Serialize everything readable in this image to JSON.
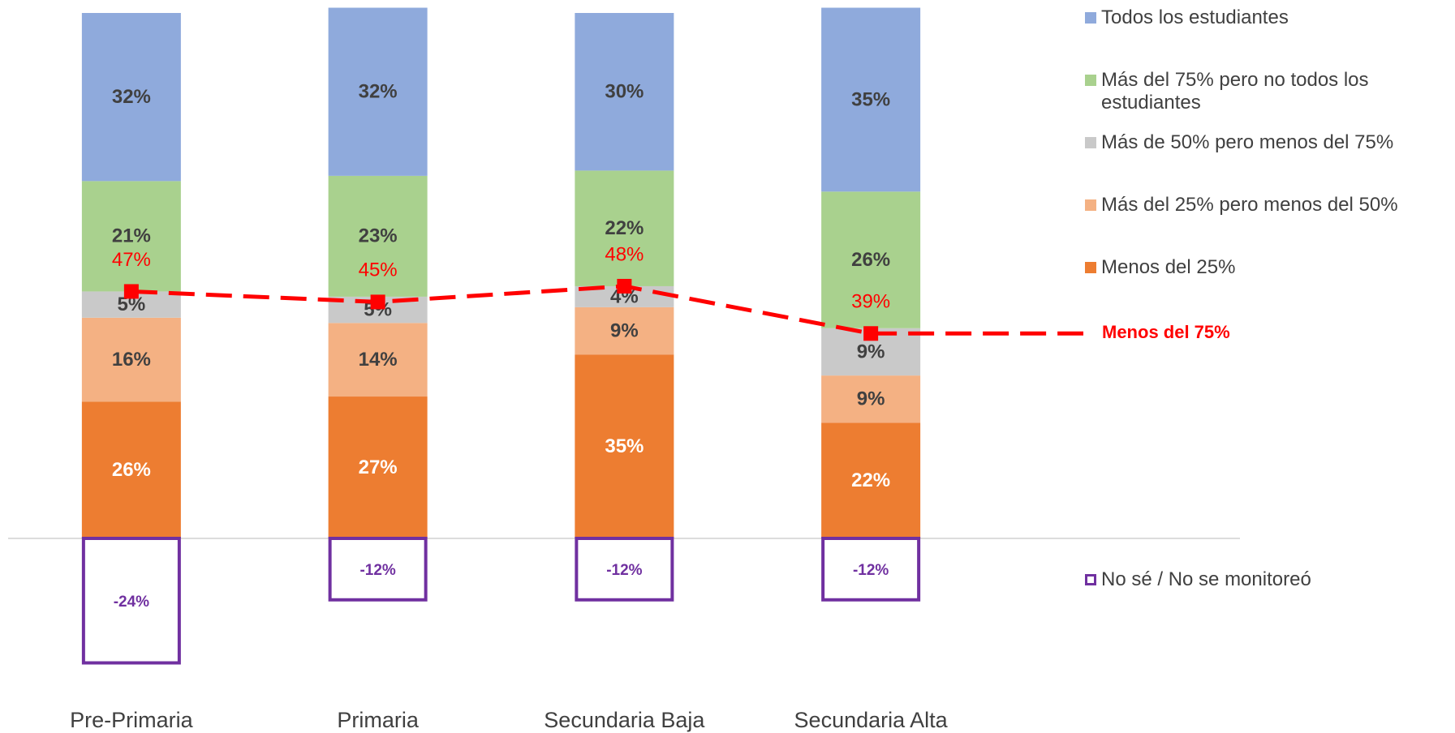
{
  "chart_data": {
    "type": "bar",
    "stacked": true,
    "categories": [
      "Pre-Primaria",
      "Primaria",
      "Secundaria Baja",
      "Secundaria Alta"
    ],
    "ylim": [
      -30,
      100
    ],
    "series": [
      {
        "name": "Menos del 25%",
        "color": "#ed7d31",
        "label_color": "#ffffff",
        "values": [
          26,
          27,
          35,
          22
        ],
        "value_labels": [
          "26%",
          "27%",
          "35%",
          "22%"
        ]
      },
      {
        "name": "Más del 25% pero menos del 50%",
        "color": "#f4b183",
        "label_color": "#404040",
        "values": [
          16,
          14,
          9,
          9
        ],
        "value_labels": [
          "16%",
          "14%",
          "9%",
          "9%"
        ]
      },
      {
        "name": "Más de 50% pero menos del 75%",
        "color": "#c9c9c9",
        "label_color": "#404040",
        "values": [
          5,
          5,
          4,
          9
        ],
        "value_labels": [
          "5%",
          "5%",
          "4%",
          "9%"
        ]
      },
      {
        "name": "Más del 75% pero no todos los estudiantes",
        "color": "#a9d18e",
        "label_color": "#404040",
        "values": [
          21,
          23,
          22,
          26
        ],
        "value_labels": [
          "21%",
          "23%",
          "22%",
          "26%"
        ]
      },
      {
        "name": "Todos los estudiantes",
        "color": "#8faadc",
        "label_color": "#404040",
        "values": [
          32,
          32,
          30,
          35
        ],
        "value_labels": [
          "32%",
          "32%",
          "30%",
          "35%"
        ]
      },
      {
        "name": "No sé / No se monitoreó",
        "color": "#7030a0",
        "style": "outline",
        "label_color": "#7030a0",
        "values": [
          -24,
          -12,
          -12,
          -12
        ],
        "value_labels": [
          "-24%",
          "-12%",
          "-12%",
          "-12%"
        ]
      },
      {
        "name": "Menos del 75%",
        "type": "line",
        "color": "#ff0000",
        "dashed": true,
        "values": [
          47,
          45,
          48,
          39
        ],
        "value_labels": [
          "47%",
          "45%",
          "48%",
          "39%"
        ]
      }
    ]
  }
}
